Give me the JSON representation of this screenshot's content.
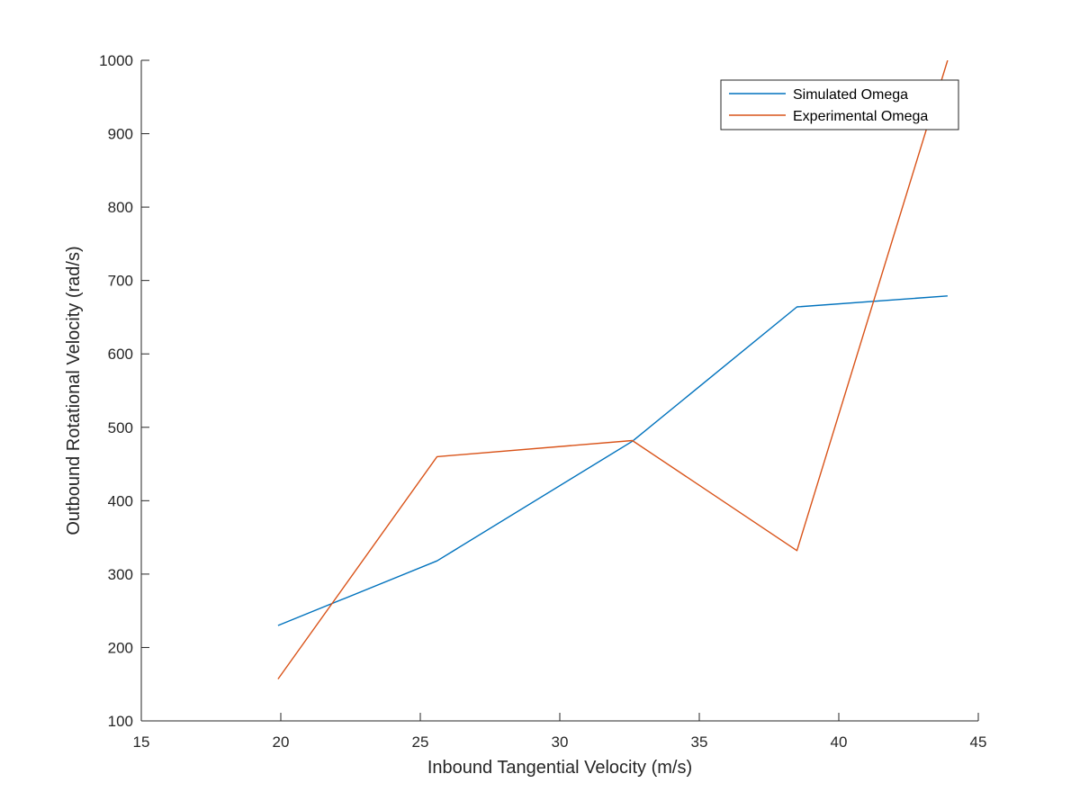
{
  "chart_data": {
    "type": "line",
    "title": "",
    "xlabel": "Inbound Tangential Velocity (m/s)",
    "ylabel": "Outbound Rotational Velocity (rad/s)",
    "xlim": [
      15,
      45
    ],
    "ylim": [
      100,
      1000
    ],
    "xticks": [
      15,
      20,
      25,
      30,
      35,
      40,
      45
    ],
    "yticks": [
      100,
      200,
      300,
      400,
      500,
      600,
      700,
      800,
      900,
      1000
    ],
    "grid": false,
    "legend_position": "top-right",
    "series": [
      {
        "name": "Simulated Omega",
        "color": "#0072BD",
        "x": [
          19.9,
          25.6,
          32.6,
          38.5,
          43.9
        ],
        "y": [
          230,
          318,
          481,
          664,
          679
        ]
      },
      {
        "name": "Experimental Omega",
        "color": "#D95319",
        "x": [
          19.9,
          25.6,
          32.6,
          38.5,
          43.9
        ],
        "y": [
          157,
          460,
          482,
          332,
          1000
        ]
      }
    ]
  }
}
